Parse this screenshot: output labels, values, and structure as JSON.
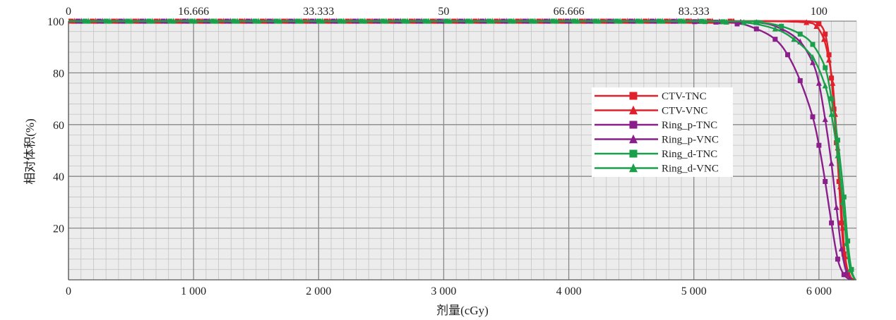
{
  "chart_data": {
    "type": "line",
    "title": "",
    "xlabel": "剂量(cGy)",
    "ylabel": "相对体积(%)",
    "xlim": [
      0,
      6300
    ],
    "ylim": [
      0,
      100
    ],
    "x_ticks": [
      0,
      1000,
      2000,
      3000,
      4000,
      5000,
      6000
    ],
    "x_tick_labels": [
      "0",
      "1 000",
      "2 000",
      "3 000",
      "4 000",
      "5 000",
      "6 000"
    ],
    "y_ticks": [
      20,
      40,
      60,
      80,
      100
    ],
    "y_tick_labels": [
      "20",
      "40",
      "60",
      "80",
      "100"
    ],
    "top_axis_ticks": [
      0,
      1000,
      2000,
      3000,
      4000,
      5000,
      6000
    ],
    "top_axis_labels": [
      "0",
      "16.666",
      "33.333",
      "50",
      "66.666",
      "83.333",
      "100"
    ],
    "grid": true,
    "legend_position": "center-right",
    "series": [
      {
        "name": "CTV-TNC",
        "color": "#e0202a",
        "marker": "square",
        "x": [
          0,
          5000,
          5600,
          5900,
          6000,
          6050,
          6080,
          6100,
          6120,
          6140,
          6160,
          6180,
          6200,
          6230,
          6270
        ],
        "y": [
          100,
          100,
          100,
          100,
          99,
          95,
          87,
          78,
          66,
          53,
          38,
          22,
          10,
          2,
          0
        ]
      },
      {
        "name": "CTV-VNC",
        "color": "#e0202a",
        "marker": "triangle",
        "x": [
          0,
          5000,
          5600,
          5900,
          5980,
          6040,
          6080,
          6110,
          6130,
          6150,
          6170,
          6190,
          6210,
          6240,
          6280
        ],
        "y": [
          100,
          100,
          100,
          99.5,
          98,
          93,
          85,
          76,
          64,
          51,
          36,
          20,
          9,
          2,
          0
        ]
      },
      {
        "name": "Ring_p-TNC",
        "color": "#8a1f8c",
        "marker": "square",
        "x": [
          0,
          4800,
          5300,
          5500,
          5650,
          5750,
          5850,
          5950,
          6000,
          6050,
          6100,
          6150,
          6200,
          6250
        ],
        "y": [
          100,
          100,
          99.5,
          97,
          93,
          87,
          77,
          63,
          52,
          38,
          22,
          8,
          2,
          0
        ]
      },
      {
        "name": "Ring_p-VNC",
        "color": "#8a1f8c",
        "marker": "triangle",
        "x": [
          0,
          5000,
          5500,
          5700,
          5850,
          5950,
          6000,
          6050,
          6100,
          6140,
          6180,
          6220,
          6260
        ],
        "y": [
          100,
          100,
          99.5,
          97,
          92,
          84,
          76,
          62,
          45,
          28,
          12,
          3,
          0
        ]
      },
      {
        "name": "Ring_d-TNC",
        "color": "#1aa04a",
        "marker": "square",
        "x": [
          0,
          5000,
          5500,
          5700,
          5850,
          5950,
          6050,
          6100,
          6150,
          6200,
          6230,
          6260,
          6290
        ],
        "y": [
          100,
          100,
          99.5,
          98,
          95,
          91,
          82,
          70,
          54,
          32,
          15,
          4,
          0
        ]
      },
      {
        "name": "Ring_d-VNC",
        "color": "#1aa04a",
        "marker": "triangle",
        "x": [
          0,
          5000,
          5400,
          5650,
          5800,
          5950,
          6050,
          6100,
          6150,
          6190,
          6220,
          6250,
          6290
        ],
        "y": [
          100,
          100,
          99.5,
          97,
          93,
          86,
          75,
          64,
          48,
          30,
          14,
          4,
          0
        ]
      }
    ]
  }
}
